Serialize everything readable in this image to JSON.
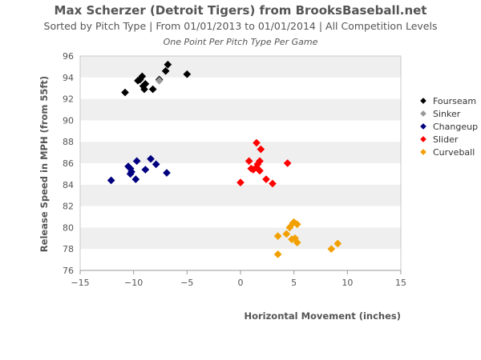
{
  "chart_data": {
    "type": "scatter",
    "title": "Max Scherzer (Detroit Tigers) from BrooksBaseball.net",
    "subtitle": "Sorted by Pitch Type | From 01/01/2013 to 01/01/2014 | All Competition Levels",
    "note": "One Point Per Pitch Type Per Game",
    "xlabel": "Horizontal Movement (inches)",
    "ylabel": "Release Speed in MPH (from 55ft)",
    "xlim": [
      -15,
      15
    ],
    "ylim": [
      76,
      96
    ],
    "xticks": [
      -15,
      -10,
      -5,
      0,
      5,
      10,
      15
    ],
    "yticks": [
      76,
      78,
      80,
      82,
      84,
      86,
      88,
      90,
      92,
      94,
      96
    ],
    "x_tick_labels": [
      "−15",
      "−10",
      "−5",
      "0",
      "5",
      "10",
      "15"
    ],
    "grid": "alternating horizontal bands",
    "legend_position": "right",
    "band_colors": [
      "#ffffff",
      "#efefef"
    ],
    "series": [
      {
        "name": "Fourseam",
        "color": "#000000",
        "points": [
          [
            -10.8,
            92.6
          ],
          [
            -9.6,
            93.7
          ],
          [
            -9.4,
            93.8
          ],
          [
            -9.2,
            94.1
          ],
          [
            -9.1,
            93.2
          ],
          [
            -9.0,
            92.9
          ],
          [
            -8.9,
            93.4
          ],
          [
            -8.2,
            92.9
          ],
          [
            -7.6,
            93.8
          ],
          [
            -7.0,
            94.6
          ],
          [
            -6.8,
            95.2
          ],
          [
            -5.0,
            94.3
          ]
        ]
      },
      {
        "name": "Sinker",
        "color": "#999999",
        "points": [
          [
            -7.6,
            93.7
          ]
        ]
      },
      {
        "name": "Changeup",
        "color": "#000080",
        "points": [
          [
            -12.1,
            84.4
          ],
          [
            -10.5,
            85.7
          ],
          [
            -10.3,
            85.5
          ],
          [
            -10.2,
            85.2
          ],
          [
            -10.3,
            85.0
          ],
          [
            -9.8,
            84.5
          ],
          [
            -9.7,
            86.2
          ],
          [
            -8.9,
            85.4
          ],
          [
            -8.4,
            86.4
          ],
          [
            -7.9,
            85.9
          ],
          [
            -6.9,
            85.1
          ]
        ]
      },
      {
        "name": "Slider",
        "color": "#ff0000",
        "points": [
          [
            0.0,
            84.2
          ],
          [
            0.8,
            86.2
          ],
          [
            1.0,
            85.5
          ],
          [
            1.2,
            85.4
          ],
          [
            1.5,
            85.6
          ],
          [
            1.5,
            87.9
          ],
          [
            1.6,
            85.9
          ],
          [
            1.8,
            86.2
          ],
          [
            1.8,
            85.3
          ],
          [
            1.9,
            87.3
          ],
          [
            2.4,
            84.5
          ],
          [
            3.0,
            84.1
          ],
          [
            4.4,
            86.0
          ]
        ]
      },
      {
        "name": "Curveball",
        "color": "#f2a000",
        "points": [
          [
            3.5,
            77.5
          ],
          [
            3.5,
            79.2
          ],
          [
            4.3,
            79.4
          ],
          [
            4.6,
            80.0
          ],
          [
            4.8,
            78.9
          ],
          [
            4.9,
            80.4
          ],
          [
            5.0,
            80.5
          ],
          [
            5.1,
            79.0
          ],
          [
            5.3,
            78.6
          ],
          [
            5.3,
            80.3
          ],
          [
            8.5,
            78.0
          ],
          [
            9.1,
            78.5
          ]
        ]
      }
    ]
  }
}
